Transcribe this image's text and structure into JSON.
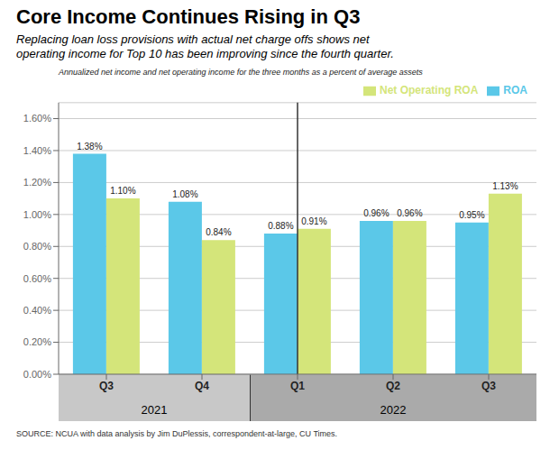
{
  "chart_data": {
    "type": "bar",
    "title": "Core Income Continues Rising in Q3",
    "subtitle": "Replacing loan loss provisions with actual net charge offs shows net\noperating income for Top 10 has been improving since the fourth quarter.",
    "note": "Annualized net income and net operating income for the three months as a percent of average assets",
    "source": "SOURCE: NCUA with data analysis by Jim DuPlessis, correspondent-at-large, CU Times.",
    "categories": [
      "Q3",
      "Q4",
      "Q1",
      "Q2",
      "Q3"
    ],
    "category_years": [
      "2021",
      "2021",
      "2022",
      "2022",
      "2022"
    ],
    "year_band_colors": [
      "#C8C8C8",
      "#AAAAAA"
    ],
    "series": [
      {
        "name": "ROA",
        "color": "#5BC8E8",
        "values": [
          1.38,
          1.08,
          0.88,
          0.96,
          0.95
        ],
        "value_labels": [
          "1.38%",
          "1.08%",
          "0.88%",
          "0.96%",
          "0.95%"
        ]
      },
      {
        "name": "Net Operating ROA",
        "color": "#D4E57A",
        "values": [
          1.1,
          0.84,
          0.91,
          0.96,
          1.13
        ],
        "value_labels": [
          "1.10%",
          "0.84%",
          "0.91%",
          "0.96%",
          "1.13%"
        ]
      }
    ],
    "ylim": [
      0.0,
      1.7
    ],
    "yticks": [
      {
        "value": 0.0,
        "label": "0.00%"
      },
      {
        "value": 0.2,
        "label": "0.20%"
      },
      {
        "value": 0.4,
        "label": "0.40%"
      },
      {
        "value": 0.6,
        "label": "0.60%"
      },
      {
        "value": 0.8,
        "label": "0.80%"
      },
      {
        "value": 1.0,
        "label": "1.00%"
      },
      {
        "value": 1.2,
        "label": "1.20%"
      },
      {
        "value": 1.4,
        "label": "1.40%"
      },
      {
        "value": 1.6,
        "label": "1.60%"
      }
    ],
    "grid": true,
    "legend": "upper right",
    "data_labels": true
  }
}
